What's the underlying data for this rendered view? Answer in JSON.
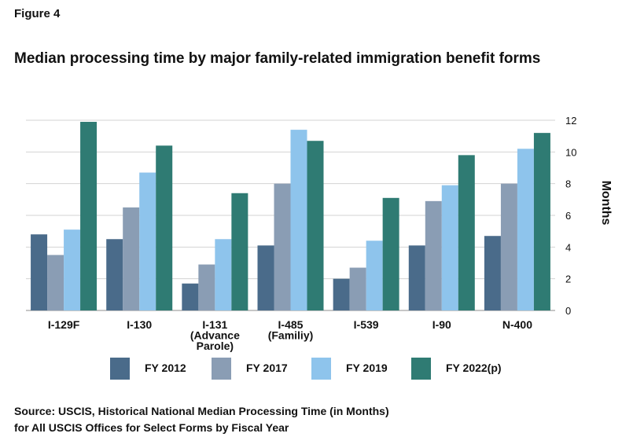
{
  "figure_label": "Figure 4",
  "chart_data": {
    "type": "bar",
    "title": "Median processing time by major family-related immigration benefit forms",
    "xlabel": "",
    "ylabel": "Months",
    "ylim": [
      0,
      12
    ],
    "yticks": [
      0,
      2,
      4,
      6,
      8,
      10,
      12
    ],
    "y_axis_side": "right",
    "grid": true,
    "legend_position": "bottom",
    "categories": [
      "I-129F",
      "I-130",
      "I-131 (Advance Parole)",
      "I-485 (Familiy)",
      "I-539",
      "I-90",
      "N-400"
    ],
    "category_label_lines": [
      [
        "I-129F"
      ],
      [
        "I-130"
      ],
      [
        "I-131",
        "(Advance",
        "Parole)"
      ],
      [
        "I-485",
        "(Familiy)"
      ],
      [
        "I-539"
      ],
      [
        "I-90"
      ],
      [
        "N-400"
      ]
    ],
    "series": [
      {
        "name": "FY 2012",
        "color": "#4a6b8a",
        "values": [
          4.8,
          4.5,
          1.7,
          4.1,
          2.0,
          4.1,
          4.7
        ]
      },
      {
        "name": "FY 2017",
        "color": "#8a9db4",
        "values": [
          3.5,
          6.5,
          2.9,
          8.0,
          2.7,
          6.9,
          8.0
        ]
      },
      {
        "name": "FY 2019",
        "color": "#8ec4ec",
        "values": [
          5.1,
          8.7,
          4.5,
          11.4,
          4.4,
          7.9,
          10.2
        ]
      },
      {
        "name": "FY 2022(p)",
        "color": "#2f7b73",
        "values": [
          11.9,
          10.4,
          7.4,
          10.7,
          7.1,
          9.8,
          11.2
        ]
      }
    ]
  },
  "source": {
    "line1": "Source: USCIS, Historical National Median Processing Time (in Months)",
    "line2": "for All USCIS Offices for Select Forms by Fiscal Year"
  }
}
